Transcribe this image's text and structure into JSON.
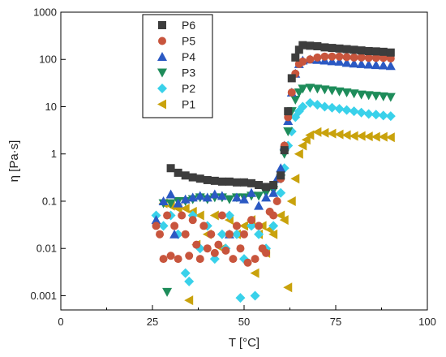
{
  "chart_data": {
    "type": "scatter",
    "title": "",
    "xlabel": "T [°C]",
    "ylabel": "η [Pa·s]",
    "xlim": [
      0,
      100
    ],
    "ylim": [
      0.0005,
      1000
    ],
    "yscale": "log",
    "x_ticks": [
      0,
      25,
      50,
      75,
      100
    ],
    "x_tick_labels": [
      "0",
      "25",
      "50",
      "75",
      "100"
    ],
    "y_ticks": [
      0.001,
      0.01,
      0.1,
      1,
      10,
      100,
      1000
    ],
    "y_tick_labels": [
      "0.001",
      "0.01",
      "0.1",
      "1",
      "10",
      "100",
      "1000"
    ],
    "grid": false,
    "legend_position": "top-left",
    "series": [
      {
        "name": "P6",
        "marker": "square",
        "color": "#3d3d3d",
        "x": [
          30,
          32,
          34,
          36,
          38,
          40,
          42,
          44,
          46,
          48,
          50,
          52,
          54,
          56,
          58,
          60,
          61,
          62,
          63,
          64,
          65,
          66,
          68,
          70,
          72,
          74,
          76,
          78,
          80,
          82,
          84,
          86,
          88,
          90
        ],
        "y": [
          0.5,
          0.4,
          0.35,
          0.32,
          0.3,
          0.28,
          0.27,
          0.26,
          0.26,
          0.25,
          0.25,
          0.24,
          0.22,
          0.2,
          0.22,
          0.35,
          1.2,
          8,
          40,
          110,
          160,
          200,
          195,
          190,
          180,
          175,
          170,
          165,
          160,
          155,
          150,
          148,
          145,
          140
        ]
      },
      {
        "name": "P5",
        "marker": "circle",
        "color": "#c8553d",
        "x": [
          26,
          27,
          28,
          29,
          30,
          31,
          32,
          33,
          34,
          35,
          36,
          37,
          38,
          39,
          40,
          41,
          42,
          43,
          44,
          45,
          46,
          47,
          48,
          49,
          50,
          51,
          52,
          53,
          54,
          55,
          56,
          57,
          58,
          59,
          60,
          61,
          62,
          63,
          64,
          65,
          66,
          68,
          70,
          72,
          74,
          76,
          78,
          80,
          82,
          84,
          86,
          88,
          90
        ],
        "y": [
          0.03,
          0.02,
          0.006,
          0.05,
          0.007,
          0.03,
          0.006,
          0.05,
          0.02,
          0.007,
          0.04,
          0.012,
          0.006,
          0.03,
          0.01,
          0.02,
          0.008,
          0.012,
          0.05,
          0.009,
          0.02,
          0.006,
          0.03,
          0.01,
          0.02,
          0.005,
          0.04,
          0.006,
          0.03,
          0.01,
          0.008,
          0.06,
          0.05,
          0.1,
          0.3,
          1.5,
          6,
          20,
          50,
          80,
          90,
          100,
          110,
          115,
          115,
          115,
          112,
          110,
          110,
          108,
          108,
          108,
          105
        ]
      },
      {
        "name": "P4",
        "marker": "triangle-up",
        "color": "#2b59c3",
        "x": [
          26,
          28,
          30,
          31,
          32,
          34,
          36,
          38,
          40,
          42,
          44,
          46,
          48,
          50,
          52,
          54,
          56,
          58,
          59,
          60,
          61,
          62,
          63,
          64,
          65,
          66,
          68,
          70,
          72,
          74,
          76,
          78,
          80,
          82,
          84,
          86,
          88,
          90
        ],
        "y": [
          0.04,
          0.1,
          0.14,
          0.02,
          0.09,
          0.11,
          0.12,
          0.13,
          0.12,
          0.14,
          0.13,
          0.02,
          0.12,
          0.11,
          0.15,
          0.08,
          0.12,
          0.15,
          0.3,
          0.5,
          1.5,
          5,
          20,
          50,
          80,
          95,
          100,
          98,
          95,
          92,
          90,
          85,
          82,
          80,
          78,
          76,
          75,
          73
        ]
      },
      {
        "name": "P3",
        "marker": "triangle-down",
        "color": "#1e8c5a",
        "x": [
          28,
          29,
          30,
          32,
          34,
          36,
          38,
          40,
          42,
          44,
          46,
          48,
          50,
          52,
          54,
          56,
          58,
          60,
          61,
          62,
          63,
          64,
          65,
          66,
          68,
          70,
          72,
          74,
          76,
          78,
          80,
          82,
          84,
          86,
          88,
          90
        ],
        "y": [
          0.09,
          0.0012,
          0.09,
          0.1,
          0.1,
          0.11,
          0.12,
          0.11,
          0.12,
          0.12,
          0.11,
          0.12,
          0.12,
          0.13,
          0.13,
          0.15,
          0.17,
          0.3,
          1,
          3,
          8,
          14,
          20,
          24,
          25,
          24,
          23,
          22,
          21,
          20,
          19,
          18,
          17.5,
          17,
          16.5,
          16
        ]
      },
      {
        "name": "P2",
        "marker": "diamond",
        "color": "#39d1ea",
        "x": [
          26,
          28,
          30,
          32,
          34,
          35,
          36,
          38,
          40,
          42,
          44,
          45,
          46,
          48,
          49,
          50,
          52,
          53,
          54,
          56,
          58,
          60,
          61,
          62,
          63,
          64,
          65,
          66,
          68,
          70,
          72,
          74,
          76,
          78,
          80,
          82,
          84,
          86,
          88,
          90
        ],
        "y": [
          0.05,
          0.03,
          0.05,
          0.02,
          0.003,
          0.002,
          0.05,
          0.01,
          0.03,
          0.006,
          0.02,
          0.01,
          0.05,
          0.02,
          0.0009,
          0.006,
          0.03,
          0.001,
          0.02,
          0.01,
          0.03,
          0.15,
          0.5,
          1.5,
          3,
          6,
          8,
          10,
          12,
          11,
          10,
          9.5,
          9,
          8.5,
          8,
          7.5,
          7,
          6.8,
          6.5,
          6.3
        ]
      },
      {
        "name": "P1",
        "marker": "triangle-left",
        "color": "#c9a20c",
        "x": [
          28,
          30,
          32,
          34,
          35,
          36,
          37,
          38,
          40,
          42,
          44,
          46,
          48,
          50,
          52,
          53,
          54,
          55,
          56,
          57,
          58,
          60,
          61,
          62,
          63,
          64,
          65,
          66,
          67,
          68,
          70,
          72,
          74,
          76,
          78,
          80,
          82,
          84,
          86,
          88,
          90
        ],
        "y": [
          0.09,
          0.08,
          0.07,
          0.07,
          0.0008,
          0.06,
          0.012,
          0.05,
          0.02,
          0.05,
          0.01,
          0.04,
          0.02,
          0.03,
          0.04,
          0.003,
          0.02,
          0.03,
          0.008,
          0.025,
          0.02,
          0.05,
          0.04,
          0.0015,
          0.1,
          0.3,
          1,
          1.5,
          2,
          2.5,
          2.9,
          2.8,
          2.7,
          2.6,
          2.5,
          2.4,
          2.4,
          2.35,
          2.3,
          2.3,
          2.25
        ]
      }
    ]
  }
}
